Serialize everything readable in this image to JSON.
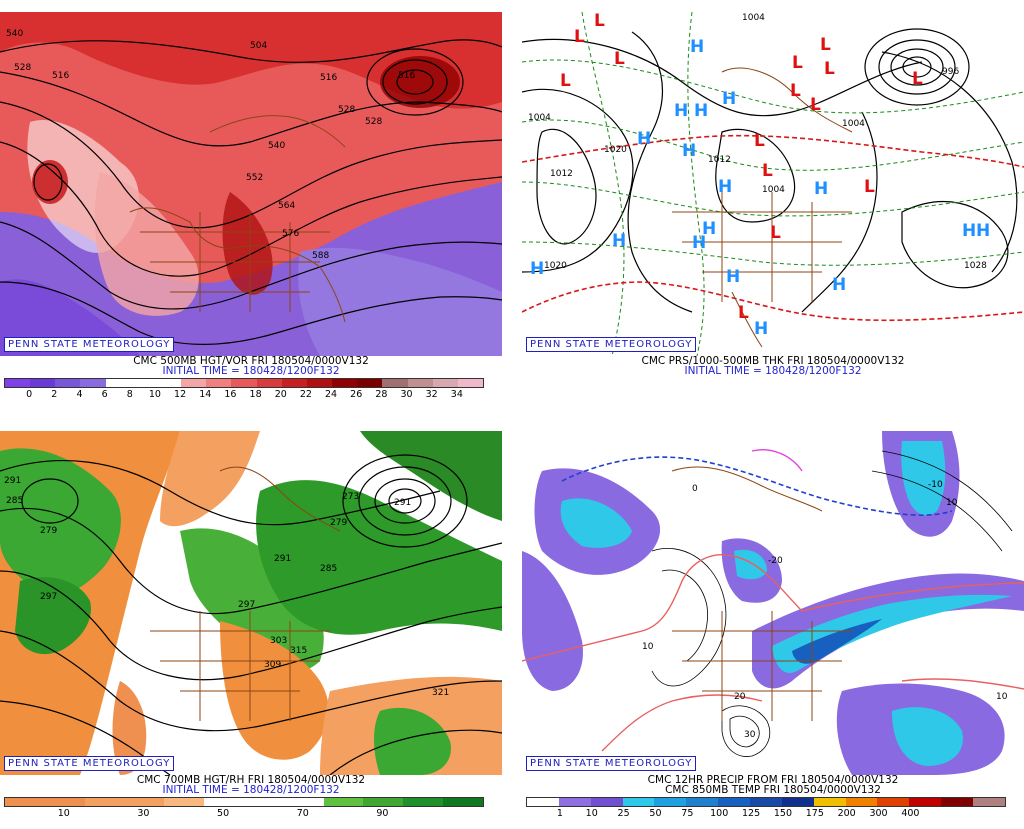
{
  "credit": "PENN STATE METEOROLOGY",
  "panels": [
    {
      "line1": "CMC 500MB HGT/VOR FRI 180504/0000V132",
      "line2": "INITIAL TIME = 180428/1200F132",
      "contours": [
        "540",
        "528",
        "516",
        "504",
        "516",
        "528",
        "516",
        "528",
        "540",
        "552",
        "564",
        "576",
        "588"
      ],
      "scale_colors": [
        "#8040e8",
        "#6a3ad8",
        "#7858d8",
        "#8a6ae0",
        "#ffffff",
        "#ffffff",
        "#ffffff",
        "#f4a6a6",
        "#f08080",
        "#e85a5a",
        "#d83c3c",
        "#c82020",
        "#b01010",
        "#900000",
        "#7a0000",
        "#a07070",
        "#c09090",
        "#d8a8b0",
        "#f0b8c8"
      ],
      "scale_labels": [
        "0",
        "2",
        "4",
        "6",
        "8",
        "10",
        "12",
        "14",
        "16",
        "18",
        "20",
        "22",
        "24",
        "26",
        "28",
        "30",
        "32",
        "34"
      ]
    },
    {
      "line1": "CMC PRS/1000-500MB THK FRI 180504/0000V132",
      "line2": "INITIAL TIME = 180428/1200F132",
      "contours": [
        "1004",
        "1004",
        "1020",
        "1012",
        "1020",
        "1012",
        "1004",
        "1028",
        "1004",
        "996"
      ],
      "highs": [
        "H",
        "H",
        "H",
        "H",
        "H",
        "H",
        "H",
        "H",
        "H",
        "H",
        "H",
        "H",
        "H",
        "H",
        "H",
        "H",
        "H"
      ],
      "lows": [
        "L",
        "L",
        "L",
        "L",
        "L",
        "L",
        "L",
        "L",
        "L",
        "L",
        "L",
        "L",
        "L",
        "L",
        "L"
      ]
    },
    {
      "line1": "CMC 700MB HGT/RH FRI 180504/0000V132",
      "line2": "INITIAL TIME = 180428/1200F132",
      "contours": [
        "291",
        "285",
        "279",
        "297",
        "291",
        "273",
        "279",
        "285",
        "291",
        "297",
        "303",
        "309",
        "315",
        "321"
      ],
      "scale_colors": [
        "#f09050",
        "#f09050",
        "#f4a060",
        "#f4a060",
        "#f8b880",
        "#ffffff",
        "#ffffff",
        "#ffffff",
        "#60c040",
        "#40a830",
        "#20902a",
        "#107820"
      ],
      "scale_labels": [
        "10",
        "30",
        "50",
        "70",
        "90"
      ]
    },
    {
      "line1": "CMC 12HR PRECIP FROM FRI 180504/0000V132",
      "line2": "CMC 850MB TEMP FRI 180504/0000V132",
      "contours": [
        "10",
        "0",
        "-10",
        "-20",
        "10",
        "20",
        "30",
        "10"
      ],
      "scale_colors": [
        "#ffffff",
        "#9070e0",
        "#7050d0",
        "#30c8e8",
        "#20a0e0",
        "#2080d0",
        "#1860c0",
        "#1848a8",
        "#103090",
        "#f0c000",
        "#f08000",
        "#e04000",
        "#c00000",
        "#800000",
        "#b08080"
      ],
      "scale_labels": [
        "1",
        "10",
        "25",
        "50",
        "75",
        "100",
        "125",
        "150",
        "175",
        "200",
        "300",
        "400"
      ]
    }
  ]
}
